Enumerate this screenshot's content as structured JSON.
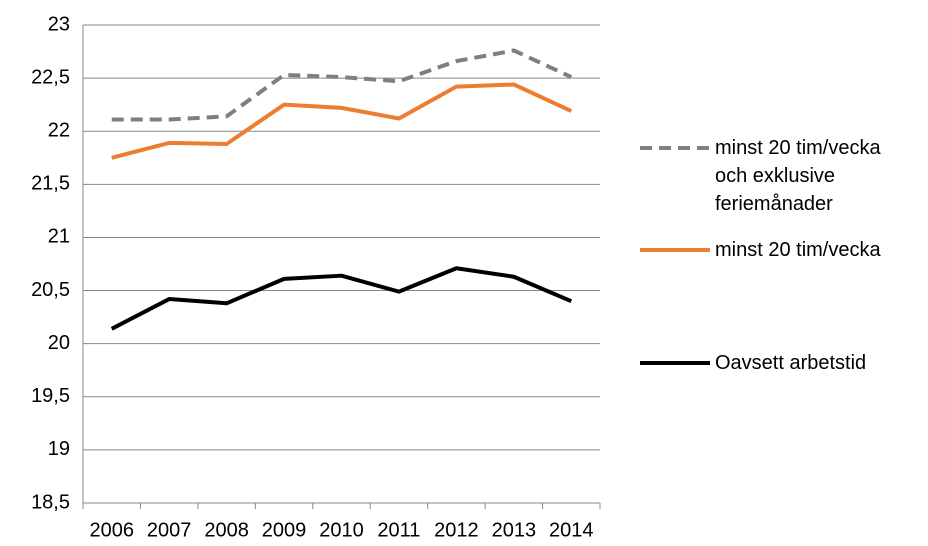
{
  "chart_data": {
    "type": "line",
    "categories": [
      "2006",
      "2007",
      "2008",
      "2009",
      "2010",
      "2011",
      "2012",
      "2013",
      "2014"
    ],
    "series": [
      {
        "name": "minst 20 tim/vecka och exklusive feriemånader",
        "color": "#7f7f7f",
        "dashed": true,
        "values": [
          22.11,
          22.11,
          22.14,
          22.53,
          22.51,
          22.47,
          22.66,
          22.76,
          22.51
        ]
      },
      {
        "name": "minst 20 tim/vecka",
        "color": "#ed7d31",
        "values": [
          21.75,
          21.89,
          21.88,
          22.25,
          22.22,
          22.12,
          22.42,
          22.44,
          22.19
        ]
      },
      {
        "name": "Oavsett arbetstid",
        "color": "#000000",
        "values": [
          20.14,
          20.42,
          20.38,
          20.61,
          20.64,
          20.49,
          20.71,
          20.63,
          20.4
        ]
      }
    ],
    "ylim": [
      18.5,
      23
    ],
    "yticks": [
      {
        "value": 18.5,
        "label": "18,5"
      },
      19,
      {
        "value": 19.5,
        "label": "19,5"
      },
      20,
      {
        "value": 20.5,
        "label": "20,5"
      },
      21,
      {
        "value": 21.5,
        "label": "21,5"
      },
      22,
      {
        "value": 22.5,
        "label": "22,5"
      },
      23
    ],
    "grid": true,
    "legend": "right"
  }
}
